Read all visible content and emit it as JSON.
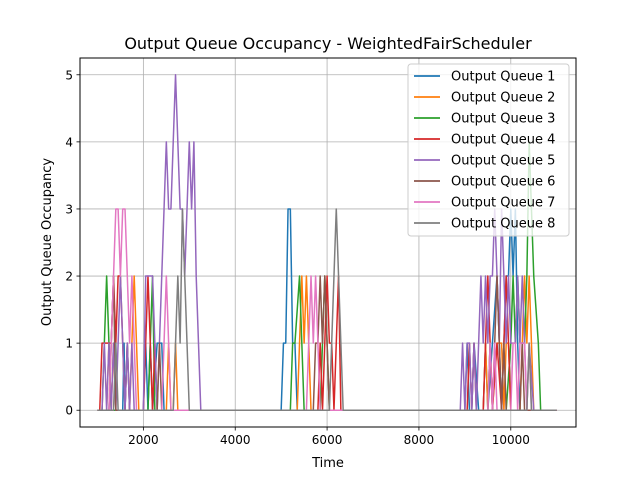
{
  "chart_data": {
    "type": "line",
    "title": "Output Queue Occupancy - WeightedFairScheduler",
    "xlabel": "Time",
    "ylabel": "Output Queue Occupancy",
    "xlim": [
      620,
      11420
    ],
    "ylim": [
      -0.25,
      5.25
    ],
    "xticks": [
      2000,
      4000,
      6000,
      8000,
      10000
    ],
    "yticks": [
      0,
      1,
      2,
      3,
      4,
      5
    ],
    "grid": true,
    "legend_position": "top-right",
    "series": [
      {
        "name": "Output Queue 1",
        "color": "#1f77b4",
        "x": [
          1000,
          1550,
          1580,
          1600,
          1650,
          1700,
          1750,
          2000,
          2050,
          2100,
          2150,
          2200,
          2300,
          2400,
          2450,
          2500,
          4950,
          5000,
          5050,
          5100,
          5150,
          5200,
          5250,
          5300,
          5350,
          8900,
          9000,
          9050,
          9100,
          9150,
          9200,
          9300,
          9400,
          9450,
          9500,
          9600,
          9700,
          9800,
          9900,
          9950,
          10000,
          10050,
          10100,
          10150,
          10200,
          10300,
          11000
        ],
        "y": [
          0,
          0,
          1,
          0,
          1,
          0,
          0,
          0,
          1,
          0,
          1,
          0,
          1,
          1,
          0,
          0,
          0,
          0,
          1,
          1,
          3,
          3,
          1,
          1,
          0,
          0,
          0,
          1,
          0,
          0,
          1,
          0,
          0,
          1,
          0,
          1,
          2,
          0,
          2,
          2,
          3,
          2,
          3,
          1,
          0,
          0,
          0
        ]
      },
      {
        "name": "Output Queue 2",
        "color": "#ff7f0e",
        "x": [
          1000,
          1200,
          1250,
          1300,
          1350,
          1400,
          1700,
          1750,
          1800,
          1850,
          1900,
          1950,
          2500,
          2550,
          2600,
          2650,
          2700,
          2750,
          5350,
          5400,
          5450,
          5500,
          5550,
          5600,
          5650,
          5700,
          9400,
          9450,
          9500,
          9550,
          9600,
          9700,
          9800,
          9850,
          9900,
          9950,
          10000,
          10200,
          10250,
          10300,
          10350,
          10400,
          10450,
          10500,
          11000
        ],
        "y": [
          0,
          0,
          1,
          0,
          1,
          0,
          0,
          1,
          2,
          1,
          0,
          0,
          0,
          1,
          0,
          0,
          1,
          0,
          0,
          1,
          2,
          1,
          2,
          1,
          0,
          0,
          0,
          1,
          0,
          1,
          0,
          1,
          1,
          0,
          1,
          1,
          0,
          0,
          1,
          2,
          1,
          2,
          1,
          0,
          0
        ]
      },
      {
        "name": "Output Queue 3",
        "color": "#2ca02c",
        "x": [
          1000,
          1100,
          1150,
          1200,
          1250,
          1300,
          1350,
          2100,
          2150,
          2200,
          2250,
          5200,
          5250,
          5300,
          5400,
          5450,
          5500,
          5850,
          5900,
          5950,
          6000,
          6050,
          6100,
          9900,
          10000,
          10050,
          10100,
          10150,
          10200,
          10300,
          10350,
          10400,
          10450,
          10500,
          10600,
          10650,
          11000
        ],
        "y": [
          0,
          0,
          1,
          2,
          1,
          0,
          0,
          0,
          1,
          2,
          0,
          0,
          1,
          1,
          2,
          1,
          0,
          0,
          1,
          2,
          1,
          0,
          0,
          0,
          1,
          2,
          1,
          2,
          1,
          1,
          2,
          4,
          3,
          2,
          1,
          0,
          0
        ]
      },
      {
        "name": "Output Queue 4",
        "color": "#d62728",
        "x": [
          1000,
          1050,
          1100,
          1300,
          1350,
          1400,
          1450,
          1500,
          1550,
          1600,
          1650,
          1700,
          2000,
          2050,
          2100,
          2150,
          2200,
          2250,
          2300,
          2350,
          5800,
          5850,
          5900,
          5950,
          6000,
          6050,
          6100,
          6150,
          6200,
          6250,
          6300,
          6350,
          9050,
          9100,
          9150,
          9200,
          9250,
          9400,
          9450,
          9500,
          9550,
          9600,
          9700,
          9800,
          9850,
          9900,
          9950,
          10000,
          11000
        ],
        "y": [
          0,
          0,
          1,
          1,
          2,
          1,
          2,
          2,
          1,
          0,
          1,
          0,
          0,
          1,
          2,
          1,
          0,
          1,
          0,
          0,
          0,
          1,
          0,
          1,
          2,
          1,
          1,
          0,
          1,
          2,
          0,
          0,
          0,
          1,
          0,
          1,
          0,
          0,
          1,
          2,
          1,
          0,
          1,
          0,
          1,
          2,
          1,
          0,
          0
        ]
      },
      {
        "name": "Output Queue 5",
        "color": "#9467bd",
        "x": [
          1000,
          1100,
          1150,
          1200,
          1250,
          1300,
          1350,
          1400,
          1450,
          1500,
          1550,
          1600,
          1650,
          1700,
          1750,
          1800,
          2000,
          2050,
          2100,
          2200,
          2250,
          2300,
          2350,
          2400,
          2450,
          2500,
          2550,
          2600,
          2650,
          2700,
          2750,
          2800,
          2850,
          2900,
          2950,
          3000,
          3050,
          3100,
          3150,
          3200,
          3250,
          3300,
          3350,
          8900,
          8950,
          9000,
          9050,
          9100,
          9150,
          9200,
          9250,
          9300,
          9350,
          9400,
          9450,
          9500,
          9550,
          9600,
          9650,
          9700,
          9750,
          9800,
          9850,
          9900,
          9950,
          10000,
          10100,
          10150,
          10200,
          10250,
          10300,
          10350,
          10400,
          10500,
          11000
        ],
        "y": [
          0,
          0,
          1,
          0,
          1,
          0,
          1,
          0,
          1,
          2,
          1,
          0,
          1,
          0,
          1,
          0,
          0,
          2,
          2,
          2,
          1,
          0,
          1,
          2,
          3,
          4,
          3,
          3,
          4,
          5,
          4,
          3,
          3,
          2,
          3,
          4,
          3,
          4,
          2,
          1,
          0,
          0,
          0,
          0,
          1,
          0,
          1,
          1,
          0,
          1,
          0,
          1,
          2,
          1,
          2,
          1,
          2,
          2,
          3,
          2,
          1,
          3,
          2,
          1,
          2,
          1,
          1,
          2,
          1,
          2,
          1,
          0,
          1,
          0,
          0
        ]
      },
      {
        "name": "Output Queue 6",
        "color": "#8c564b",
        "x": [
          1000,
          1250,
          1300,
          1350,
          1400,
          2300,
          2350,
          2400,
          2450,
          5700,
          5750,
          5800,
          5850,
          5900,
          5950,
          6000,
          6050,
          9500,
          9550,
          9600,
          9650,
          9700,
          9750,
          9800,
          9850,
          9900,
          10200,
          10250,
          10300,
          11000
        ],
        "y": [
          0,
          0,
          1,
          2,
          0,
          0,
          1,
          0,
          0,
          0,
          1,
          1,
          2,
          1,
          2,
          1,
          0,
          0,
          1,
          0,
          1,
          2,
          1,
          0,
          1,
          0,
          0,
          1,
          0,
          0
        ]
      },
      {
        "name": "Output Queue 7",
        "color": "#e377c2",
        "x": [
          1000,
          1250,
          1300,
          1350,
          1400,
          1450,
          1500,
          1550,
          1600,
          1650,
          1700,
          1750,
          1800,
          1850,
          1900,
          2400,
          2450,
          2500,
          2550,
          2600,
          5550,
          5600,
          5650,
          5700,
          5750,
          5800,
          5850,
          9500,
          9550,
          9600,
          9650,
          9700,
          9750,
          10000,
          10050,
          10100,
          10150,
          10200,
          10300,
          10350,
          10400,
          10450,
          11000
        ],
        "y": [
          0,
          0,
          1,
          2,
          3,
          3,
          2,
          3,
          3,
          2,
          1,
          2,
          1,
          0,
          0,
          0,
          1,
          2,
          1,
          0,
          0,
          1,
          2,
          1,
          2,
          1,
          0,
          0,
          1,
          0,
          1,
          0,
          0,
          0,
          1,
          1,
          0,
          1,
          1,
          0,
          1,
          0,
          0
        ]
      },
      {
        "name": "Output Queue 8",
        "color": "#7f7f7f",
        "x": [
          1000,
          1350,
          1400,
          1450,
          1500,
          2650,
          2700,
          2750,
          2800,
          2850,
          2900,
          2950,
          3000,
          3050,
          6050,
          6100,
          6150,
          6200,
          6250,
          6300,
          6350,
          10350,
          10400,
          10450,
          10500,
          11000
        ],
        "y": [
          0,
          0,
          1,
          0,
          0,
          0,
          1,
          2,
          1,
          3,
          2,
          1,
          0,
          0,
          0,
          1,
          2,
          3,
          2,
          1,
          0,
          0,
          1,
          0,
          0,
          0
        ]
      }
    ]
  }
}
